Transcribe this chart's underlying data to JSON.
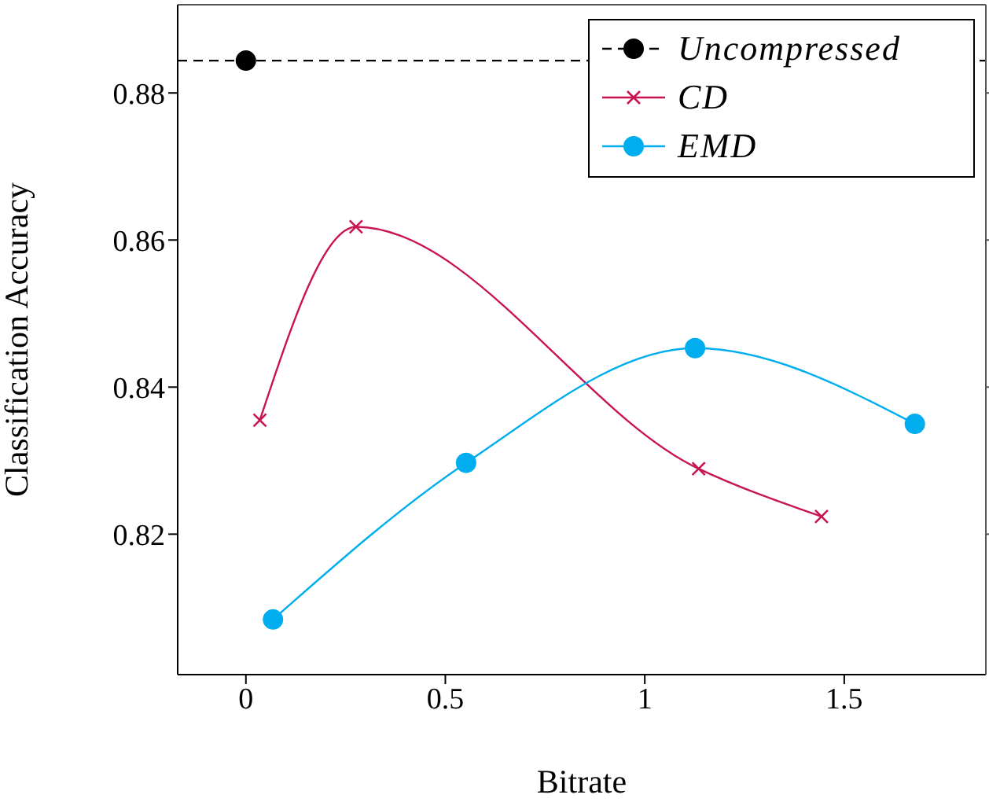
{
  "chart_data": {
    "type": "line",
    "xlabel": "Bitrate",
    "ylabel": "Classification Accuracy",
    "xlim": [
      -0.171,
      1.855
    ],
    "ylim": [
      0.8009,
      0.892
    ],
    "xticks": [
      0,
      0.5,
      1,
      1.5
    ],
    "yticks": [
      0.82,
      0.84,
      0.86,
      0.88
    ],
    "series": [
      {
        "name": "Uncompressed",
        "color": "#000000",
        "x": [
          0
        ],
        "values": [
          0.8844
        ],
        "marker": "circle",
        "line_style": "dashed"
      },
      {
        "name": "CD",
        "color": "#c8144f",
        "x": [
          0.035,
          0.276,
          1.135,
          1.443
        ],
        "values": [
          0.8355,
          0.8618,
          0.8289,
          0.8224
        ],
        "marker": "cross"
      },
      {
        "name": "EMD",
        "color": "#00aeef",
        "x": [
          0.068,
          0.552,
          1.126,
          1.677
        ],
        "values": [
          0.8084,
          0.8297,
          0.8453,
          0.835
        ],
        "marker": "circle"
      }
    ],
    "ref_lines": [
      {
        "axis": "y",
        "value": 0.8844,
        "color": "#000000",
        "line_style": "dashed"
      }
    ],
    "legend": "top right"
  }
}
